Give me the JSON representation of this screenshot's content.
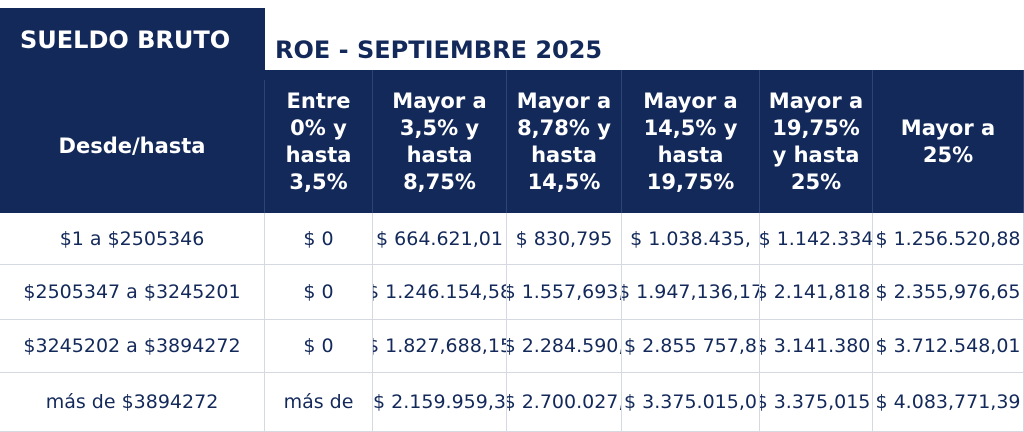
{
  "header": {
    "title": "SUELDO BRUTO",
    "subtitle": "ROE - SEPTIEMBRE 2025"
  },
  "table": {
    "columns": [
      "Desde/hasta",
      "Entre 0% y hasta 3,5%",
      "Mayor a 3,5% y hasta 8,75%",
      "Mayor a 8,78% y hasta 14,5%",
      "Mayor a 14,5% y hasta 19,75%",
      "Mayor a 19,75% y hasta 25%",
      "Mayor a 25%"
    ],
    "rows": [
      [
        "$1 a $2505346",
        "$ 0",
        "$ 664.621,01",
        "$ 830,795",
        "$ 1.038.435,",
        "$ 1.142.334",
        "$ 1.256.520,88"
      ],
      [
        "$2505347 a $3245201",
        "$ 0",
        "$ 1.246.154,58",
        "$ 1.557,693,",
        "$ 1.947,136,17",
        "$ 2.141,818,",
        "$ 2.355,976,65"
      ],
      [
        "$3245202 a $3894272",
        "$ 0",
        "$ 1.827,688,15",
        "$ 2.284.590,",
        "$ 2.855 757,8",
        "$ 3.141.380,",
        "$ 3.712.548,01"
      ],
      [
        "más de $3894272",
        "más de",
        "$ 2.159.959,3",
        "$ 2.700.027,",
        "$ 3.375.015,0",
        "$ 3.375,015,",
        "$ 4.083,771,39"
      ]
    ]
  }
}
